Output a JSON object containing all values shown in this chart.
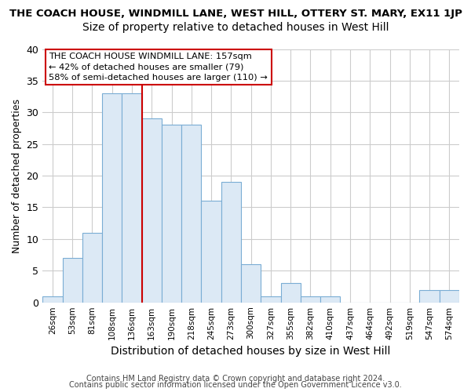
{
  "title": "THE COACH HOUSE, WINDMILL LANE, WEST HILL, OTTERY ST. MARY, EX11 1JP",
  "subtitle": "Size of property relative to detached houses in West Hill",
  "xlabel": "Distribution of detached houses by size in West Hill",
  "ylabel": "Number of detached properties",
  "bin_labels": [
    "26sqm",
    "53sqm",
    "81sqm",
    "108sqm",
    "136sqm",
    "163sqm",
    "190sqm",
    "218sqm",
    "245sqm",
    "273sqm",
    "300sqm",
    "327sqm",
    "355sqm",
    "382sqm",
    "410sqm",
    "437sqm",
    "464sqm",
    "492sqm",
    "519sqm",
    "547sqm",
    "574sqm"
  ],
  "bar_heights": [
    1,
    7,
    11,
    33,
    33,
    29,
    28,
    28,
    16,
    19,
    6,
    1,
    3,
    1,
    1,
    0,
    0,
    0,
    0,
    2,
    2
  ],
  "bar_color": "#dce9f5",
  "bar_edgecolor": "#7aadd4",
  "vline_x_idx": 5,
  "vline_color": "#cc0000",
  "ylim": [
    0,
    40
  ],
  "yticks": [
    0,
    5,
    10,
    15,
    20,
    25,
    30,
    35,
    40
  ],
  "annotation_title": "THE COACH HOUSE WINDMILL LANE: 157sqm",
  "annotation_line2": "← 42% of detached houses are smaller (79)",
  "annotation_line3": "58% of semi-detached houses are larger (110) →",
  "annotation_box_facecolor": "#ffffff",
  "annotation_box_edgecolor": "#cc0000",
  "footnote1": "Contains HM Land Registry data © Crown copyright and database right 2024.",
  "footnote2": "Contains public sector information licensed under the Open Government Licence v3.0.",
  "background_color": "#ffffff",
  "grid_color": "#cccccc",
  "title_fontsize": 9.5,
  "subtitle_fontsize": 10,
  "ylabel_fontsize": 9,
  "xlabel_fontsize": 10
}
